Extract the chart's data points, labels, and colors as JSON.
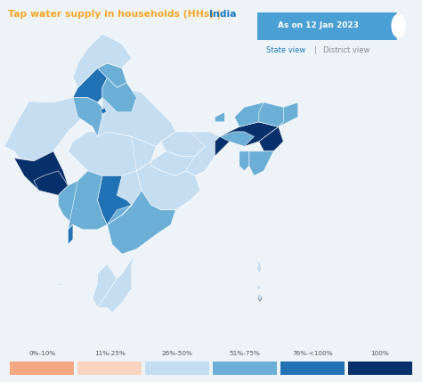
{
  "title_part1": "Tap water supply in households (HHs) | ",
  "title_part2": "India",
  "title_color1": "#f5a623",
  "title_color2": "#1a7abf",
  "date_label": "As on 12 Jan 2023",
  "date_box_color": "#4a9fd4",
  "bg_color": "#eef3f8",
  "legend_labels": [
    "0%-10%",
    "11%-25%",
    "26%-50%",
    "51%-75%",
    "76%-<100%",
    "100%"
  ],
  "legend_colors": [
    "#f4a882",
    "#fad4c0",
    "#c5ddf0",
    "#6baed6",
    "#2171b5",
    "#08306b"
  ]
}
